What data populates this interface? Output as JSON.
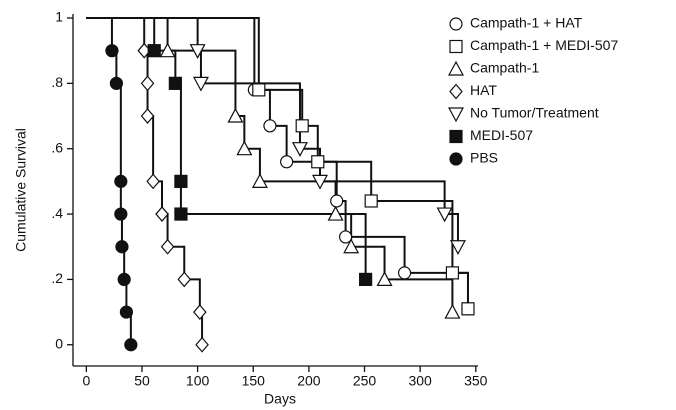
{
  "chart_data": {
    "type": "step",
    "xlabel": "Days",
    "ylabel": "Cumulative Survival",
    "xlim": [
      -12,
      352
    ],
    "ylim": [
      -0.065,
      1.0
    ],
    "xticks": [
      0,
      50,
      100,
      150,
      200,
      250,
      300,
      350
    ],
    "yticks": [
      {
        "value": 0,
        "label": "0"
      },
      {
        "value": 0.2,
        "label": ".2"
      },
      {
        "value": 0.4,
        "label": ".4"
      },
      {
        "value": 0.6,
        "label": ".6"
      },
      {
        "value": 0.8,
        "label": ".8"
      },
      {
        "value": 1,
        "label": "1"
      }
    ],
    "legend": "upper right",
    "series": [
      {
        "name": "Campath-1 + HAT",
        "marker": "circle-open",
        "color": "#111",
        "x": [
          151,
          165,
          180,
          225,
          233,
          286,
          343
        ],
        "values": [
          0.78,
          0.67,
          0.56,
          0.44,
          0.33,
          0.22,
          0.11
        ]
      },
      {
        "name": "Campath-1 + MEDI-507",
        "marker": "square-open",
        "color": "#111",
        "x": [
          155,
          194,
          208,
          256,
          329,
          343
        ],
        "values": [
          0.78,
          0.67,
          0.56,
          0.44,
          0.22,
          0.11
        ]
      },
      {
        "name": "Campath-1",
        "marker": "triangle-up-open",
        "color": "#111",
        "x": [
          73,
          134,
          142,
          156,
          224,
          238,
          268,
          329
        ],
        "values": [
          0.9,
          0.7,
          0.6,
          0.5,
          0.4,
          0.3,
          0.2,
          0.1
        ]
      },
      {
        "name": "HAT",
        "marker": "diamond-open",
        "color": "#111",
        "x": [
          52,
          55,
          55,
          60,
          68,
          73,
          88,
          102,
          104
        ],
        "values": [
          0.9,
          0.8,
          0.7,
          0.5,
          0.4,
          0.3,
          0.2,
          0.1,
          0
        ]
      },
      {
        "name": "No Tumor/Treatment",
        "marker": "triangle-down-open",
        "color": "#111",
        "x": [
          100,
          103,
          192,
          210,
          322,
          334
        ],
        "values": [
          0.9,
          0.8,
          0.6,
          0.5,
          0.4,
          0.3
        ]
      },
      {
        "name": "MEDI-507",
        "marker": "square-filled",
        "color": "#111",
        "x": [
          61,
          80,
          85,
          85,
          251
        ],
        "values": [
          0.9,
          0.8,
          0.5,
          0.4,
          0.2
        ]
      },
      {
        "name": "PBS",
        "marker": "circle-filled",
        "color": "#111",
        "x": [
          23,
          27,
          31,
          31,
          32,
          34,
          36,
          40
        ],
        "values": [
          0.9,
          0.8,
          0.5,
          0.4,
          0.3,
          0.2,
          0.1,
          0
        ]
      }
    ]
  }
}
